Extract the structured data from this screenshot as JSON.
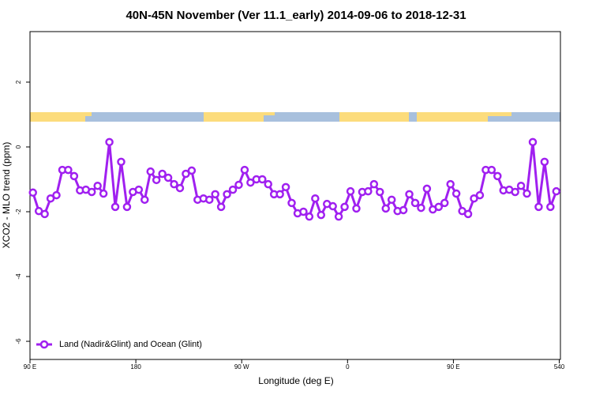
{
  "chart_data": {
    "type": "line",
    "title": "40N-45N November (Ver 11.1_early)   2014-09-06 to 2018-12-31",
    "x_label": "Longitude (deg E)",
    "y_label": "XCO2 - MLO trend (ppm)",
    "xlim": [
      90,
      541
    ],
    "ylim": [
      -6.56,
      3.56
    ],
    "xticks": [
      {
        "value": 90,
        "label": "90 E"
      },
      180,
      {
        "value": 270,
        "label": "90 W"
      },
      {
        "value": 360,
        "label": "0"
      },
      {
        "value": 450,
        "label": "90 E"
      },
      540
    ],
    "yticks": [
      -6,
      -4,
      -2,
      0,
      2
    ],
    "legend": "bottom-left",
    "x": [
      92.5,
      97.5,
      102.5,
      107.5,
      112.5,
      117.5,
      122.5,
      127.5,
      132.5,
      137.5,
      142.5,
      147.5,
      152.5,
      157.5,
      162.5,
      167.5,
      172.5,
      177.5,
      182.5,
      187.5,
      192.5,
      197.5,
      202.5,
      207.5,
      212.5,
      217.5,
      222.5,
      227.5,
      232.5,
      237.5,
      242.5,
      247.5,
      252.5,
      257.5,
      262.5,
      267.5,
      272.5,
      277.5,
      282.5,
      287.5,
      292.5,
      297.5,
      302.5,
      307.5,
      312.5,
      317.5,
      322.5,
      327.5,
      332.5,
      337.5,
      342.5,
      347.5,
      352.5,
      357.5,
      362.5,
      367.5,
      372.5,
      377.5,
      382.5,
      387.5,
      392.5,
      397.5,
      402.5,
      407.5,
      412.5,
      417.5,
      422.5,
      427.5,
      432.5,
      437.5,
      442.5,
      447.5,
      452.5,
      457.5,
      462.5,
      467.5,
      472.5,
      477.5,
      482.5,
      487.5,
      492.5,
      497.5,
      502.5,
      507.5,
      512.5,
      517.5,
      522.5,
      527.5,
      532.5,
      537.5
    ],
    "series": [
      {
        "name": "Land (Nadir&Glint) and Ocean (Glint)",
        "color": "#a020f0",
        "values": [
          -1.41,
          -1.98,
          -2.07,
          -1.59,
          -1.49,
          -0.71,
          -0.71,
          -0.9,
          -1.34,
          -1.32,
          -1.39,
          -1.2,
          -1.44,
          0.15,
          -1.85,
          -0.46,
          -1.85,
          -1.39,
          -1.32,
          -1.63,
          -0.76,
          -1.02,
          -0.83,
          -0.95,
          -1.15,
          -1.27,
          -0.83,
          -0.73,
          -1.63,
          -1.59,
          -1.63,
          -1.46,
          -1.85,
          -1.46,
          -1.32,
          -1.17,
          -0.71,
          -1.1,
          -1.0,
          -1.0,
          -1.15,
          -1.46,
          -1.46,
          -1.24,
          -1.73,
          -2.05,
          -2.0,
          -2.15,
          -1.59,
          -2.1,
          -1.76,
          -1.83,
          -2.15,
          -1.85,
          -1.37,
          -1.9,
          -1.39,
          -1.37,
          -1.15,
          -1.39,
          -1.9,
          -1.63,
          -1.98,
          -1.95,
          -1.46,
          -1.73,
          -1.88,
          -1.29,
          -1.93,
          -1.85,
          -1.73,
          -1.15,
          -1.44,
          -1.98,
          -2.07,
          -1.59,
          -1.49,
          -0.71,
          -0.71,
          -0.9,
          -1.34,
          -1.32,
          -1.39,
          -1.2,
          -1.44,
          0.15,
          -1.85,
          -0.46,
          -1.85,
          -1.37
        ]
      }
    ]
  }
}
